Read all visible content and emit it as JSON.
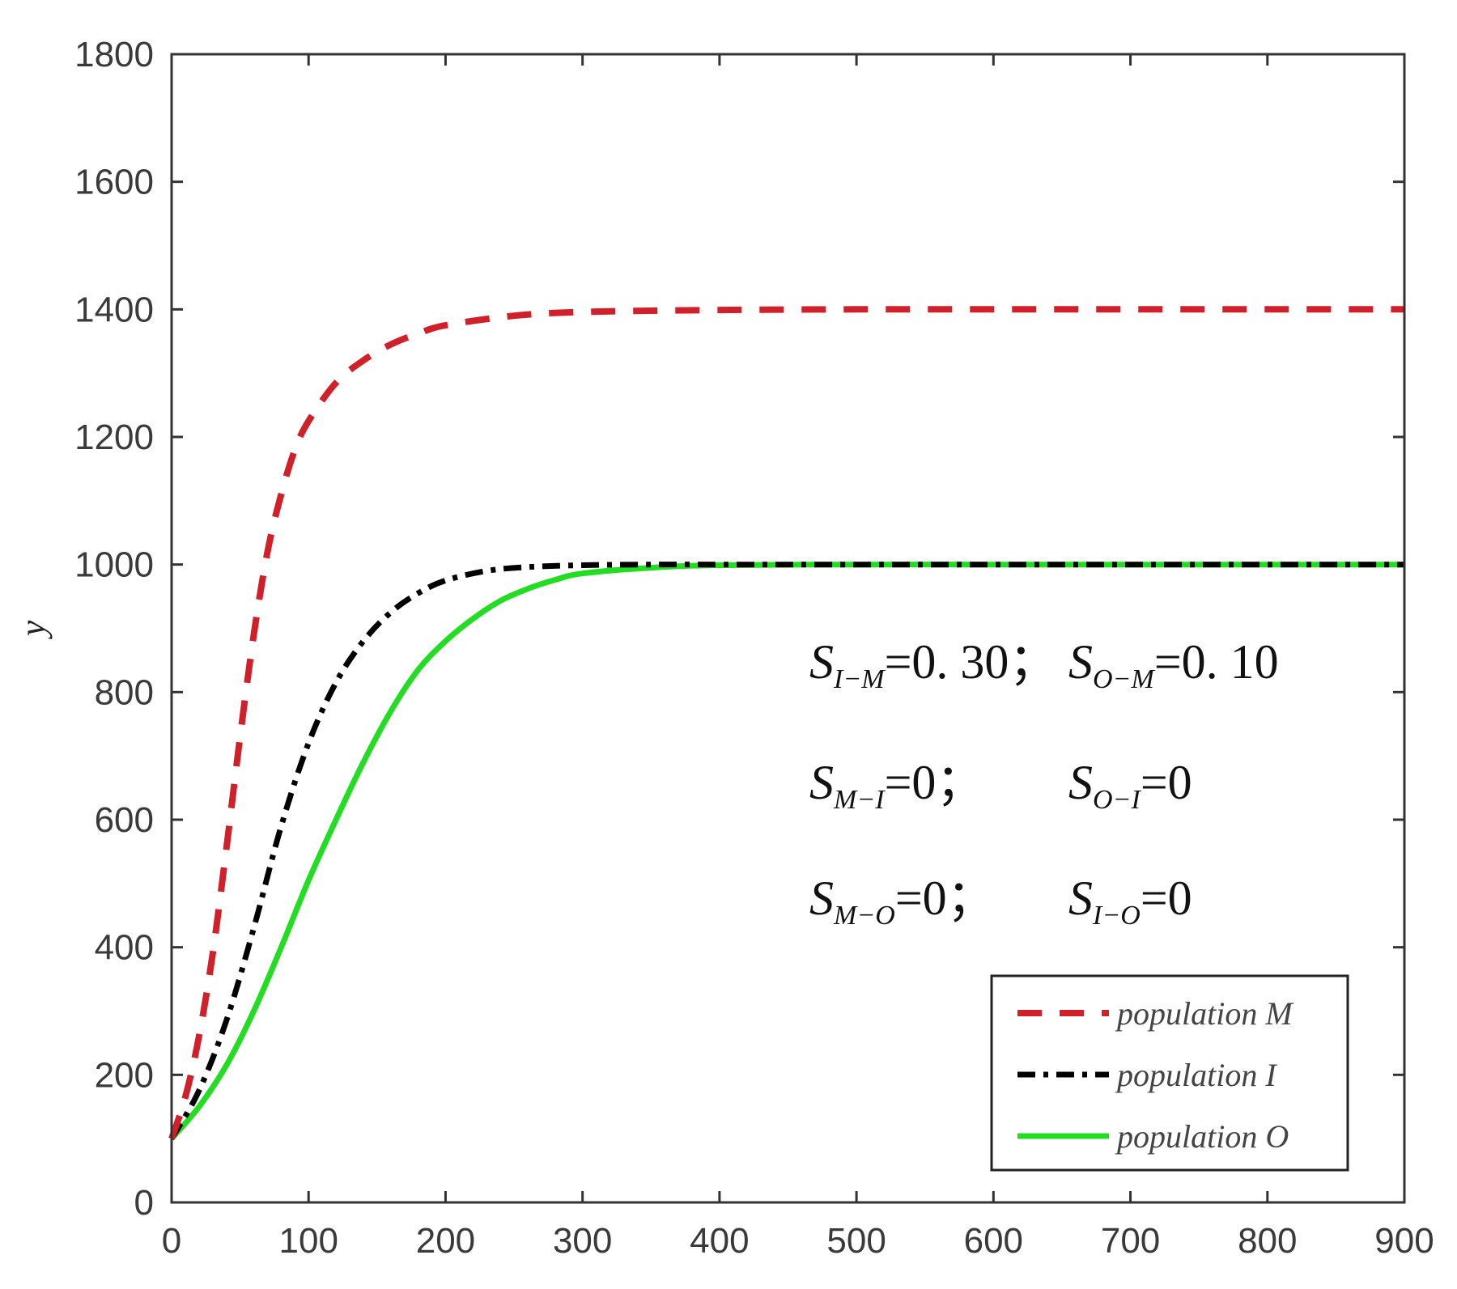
{
  "chart_data": {
    "type": "line",
    "title": "",
    "xlabel": "",
    "ylabel": "y",
    "xlim": [
      0,
      900
    ],
    "ylim": [
      0,
      1800
    ],
    "x_ticks": [
      "0",
      "100",
      "200",
      "300",
      "400",
      "500",
      "600",
      "700",
      "800",
      "900"
    ],
    "y_ticks": [
      "0",
      "200",
      "400",
      "600",
      "800",
      "1000",
      "1200",
      "1400",
      "1600",
      "1800"
    ],
    "grid": false,
    "legend_position": "bottom-right",
    "series": [
      {
        "name": "population M",
        "color": "#d0202a",
        "style": "dashed",
        "x": [
          0,
          10,
          20,
          30,
          40,
          50,
          60,
          70,
          80,
          90,
          100,
          120,
          140,
          160,
          180,
          200,
          250,
          300,
          400,
          500,
          600,
          700,
          800,
          900
        ],
        "y": [
          100,
          165,
          260,
          390,
          555,
          730,
          890,
          1020,
          1110,
          1180,
          1225,
          1285,
          1320,
          1345,
          1362,
          1375,
          1390,
          1396,
          1399,
          1400,
          1400,
          1400,
          1400,
          1400
        ]
      },
      {
        "name": "population I",
        "color": "#000000",
        "style": "dashdot",
        "x": [
          0,
          20,
          40,
          60,
          80,
          100,
          120,
          140,
          160,
          180,
          200,
          230,
          260,
          300,
          350,
          400,
          500,
          600,
          700,
          800,
          900
        ],
        "y": [
          100,
          175,
          285,
          430,
          590,
          720,
          815,
          880,
          925,
          955,
          975,
          990,
          996,
          999,
          1000,
          1000,
          1000,
          1000,
          1000,
          1000,
          1000
        ]
      },
      {
        "name": "population O",
        "color": "#22dd22",
        "style": "solid",
        "x": [
          0,
          20,
          40,
          60,
          80,
          100,
          120,
          140,
          160,
          180,
          200,
          220,
          240,
          260,
          280,
          300,
          350,
          400,
          500,
          600,
          700,
          800,
          900
        ],
        "y": [
          100,
          150,
          215,
          300,
          400,
          505,
          600,
          690,
          770,
          835,
          880,
          915,
          943,
          962,
          976,
          986,
          995,
          999,
          1000,
          1000,
          1000,
          1000,
          1000
        ]
      }
    ],
    "annotations": [
      {
        "left": {
          "s": "S",
          "sub": "I−M",
          "val": "=0. 30；"
        },
        "right": {
          "s": "S",
          "sub": "O−M",
          "val": "=0. 10"
        }
      },
      {
        "left": {
          "s": "S",
          "sub": "M−I",
          "val": "=0；"
        },
        "right": {
          "s": "S",
          "sub": "O−I",
          "val": "=0"
        }
      },
      {
        "left": {
          "s": "S",
          "sub": "M−O",
          "val": "=0；"
        },
        "right": {
          "s": "S",
          "sub": "I−O",
          "val": "=0"
        }
      }
    ]
  }
}
